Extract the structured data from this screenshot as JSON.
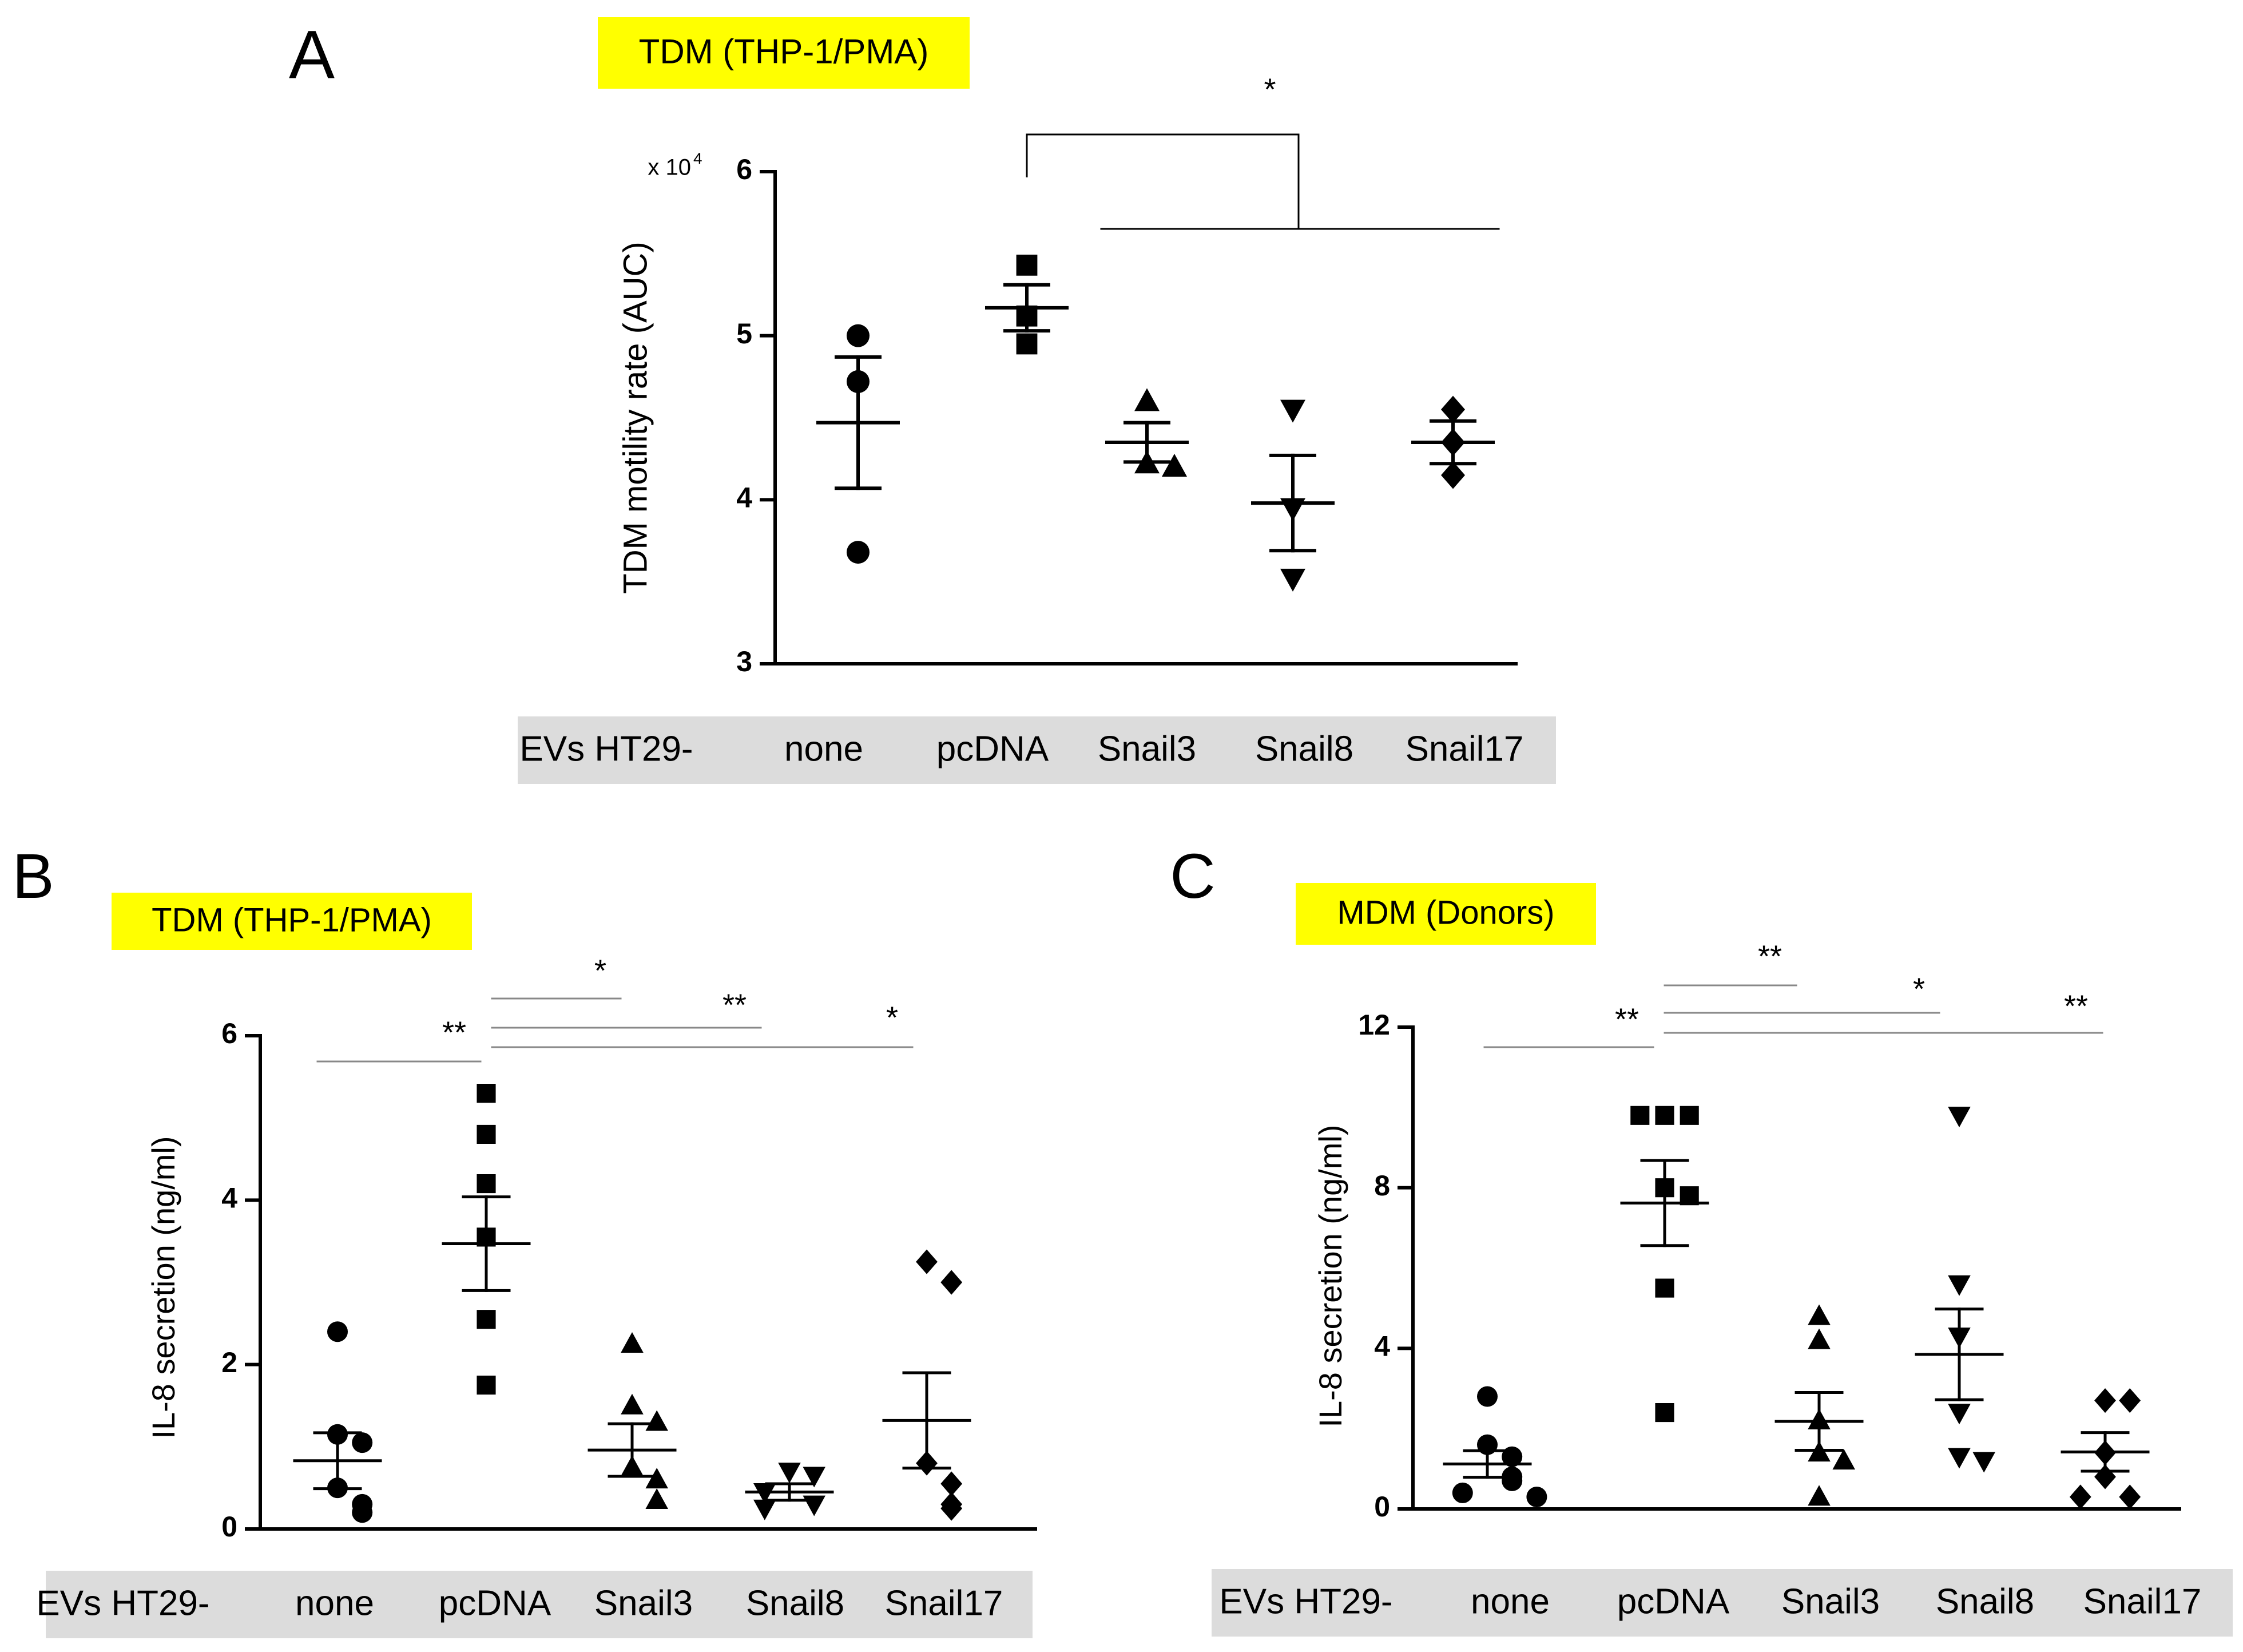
{
  "figure": {
    "label_note": "Three dot-plot panels (mean ± SEM) of EV treatments",
    "highlight_color": "#ffff00",
    "band_color": "#dcdcdc",
    "mark_color": "#000000",
    "bracket_color_bold": "#000000",
    "bracket_color_light": "#888888"
  },
  "chart_data": [
    {
      "panel": "A",
      "type": "scatter",
      "title": "TDM (THP-1/PMA)",
      "ylabel": "TDM motility rate (AUC)",
      "y_multiplier": "x 10",
      "y_multiplier_exp": "4",
      "ylim": [
        3,
        6
      ],
      "yticks": [
        "3",
        "4",
        "5",
        "6"
      ],
      "band_label": "EVs HT29-",
      "categories": [
        "none",
        "pcDNA",
        "Snail3",
        "Snail8",
        "Snail17"
      ],
      "markers": [
        "circle",
        "square",
        "triangle-up",
        "triangle-down",
        "diamond"
      ],
      "points": [
        [
          5.0,
          4.72,
          3.68
        ],
        [
          5.43,
          5.12,
          4.95
        ],
        [
          4.6,
          4.22,
          4.2
        ],
        [
          4.55,
          3.95,
          3.52
        ],
        [
          4.55,
          4.35,
          4.15
        ]
      ],
      "mean": [
        4.47,
        5.17,
        4.35,
        3.98,
        4.35
      ],
      "sem_upper": [
        4.87,
        5.31,
        4.47,
        4.27,
        4.48
      ],
      "sem_lower": [
        4.07,
        5.03,
        4.23,
        3.69,
        4.22
      ],
      "significance": [
        {
          "label": "*",
          "from": "pcDNA",
          "to": [
            "Snail3",
            "Snail8",
            "Snail17"
          ]
        }
      ]
    },
    {
      "panel": "B",
      "type": "scatter",
      "title": "TDM (THP-1/PMA)",
      "ylabel": "IL-8 secretion (ng/ml)",
      "ylim": [
        0,
        6
      ],
      "yticks": [
        "0",
        "2",
        "4",
        "6"
      ],
      "band_label": "EVs HT29-",
      "categories": [
        "none",
        "pcDNA",
        "Snail3",
        "Snail8",
        "Snail17"
      ],
      "markers": [
        "circle",
        "square",
        "triangle-up",
        "triangle-down",
        "diamond"
      ],
      "points": [
        [
          2.4,
          1.15,
          1.05,
          0.5,
          0.3,
          0.2
        ],
        [
          5.3,
          4.8,
          4.2,
          3.55,
          2.55,
          1.75
        ],
        [
          2.25,
          1.5,
          1.3,
          0.75,
          0.6,
          0.35
        ],
        [
          0.7,
          0.65,
          0.45,
          0.3,
          0.25
        ],
        [
          3.25,
          3.0,
          0.8,
          0.55,
          0.3,
          0.25
        ]
      ],
      "mean": [
        0.83,
        3.47,
        0.96,
        0.45,
        1.32
      ],
      "sem_upper": [
        1.17,
        4.04,
        1.28,
        0.55,
        1.9
      ],
      "sem_lower": [
        0.49,
        2.9,
        0.64,
        0.35,
        0.74
      ],
      "significance": [
        {
          "label": "**",
          "from": "none",
          "to": "pcDNA"
        },
        {
          "label": "*",
          "from": "pcDNA",
          "to": "Snail3"
        },
        {
          "label": "**",
          "from": "pcDNA",
          "to": "Snail8"
        },
        {
          "label": "*",
          "from": "pcDNA",
          "to": "Snail17"
        }
      ]
    },
    {
      "panel": "C",
      "type": "scatter",
      "title": "MDM (Donors)",
      "ylabel": "IL-8 secretion (ng/ml)",
      "ylim": [
        0,
        12
      ],
      "yticks": [
        "0",
        "4",
        "8",
        "12"
      ],
      "band_label": "EVs HT29-",
      "categories": [
        "none",
        "pcDNA",
        "Snail3",
        "Snail8",
        "Snail17"
      ],
      "markers": [
        "circle",
        "square",
        "triangle-up",
        "triangle-down",
        "diamond"
      ],
      "points": [
        [
          2.8,
          1.6,
          1.3,
          0.8,
          0.7,
          0.4,
          0.3
        ],
        [
          9.8,
          9.8,
          9.8,
          8.0,
          7.8,
          5.5,
          2.4
        ],
        [
          4.8,
          4.2,
          2.2,
          1.4,
          1.2,
          0.3
        ],
        [
          9.8,
          5.6,
          4.3,
          2.4,
          1.3,
          1.2
        ],
        [
          2.7,
          2.7,
          1.4,
          0.8,
          0.3,
          0.3
        ]
      ],
      "mean": [
        1.12,
        7.62,
        2.18,
        3.85,
        1.42
      ],
      "sem_upper": [
        1.45,
        8.68,
        2.9,
        4.98,
        1.9
      ],
      "sem_lower": [
        0.79,
        6.56,
        1.46,
        2.72,
        0.94
      ],
      "significance": [
        {
          "label": "**",
          "from": "none",
          "to": "pcDNA"
        },
        {
          "label": "**",
          "from": "pcDNA",
          "to": "Snail3"
        },
        {
          "label": "*",
          "from": "pcDNA",
          "to": "Snail8"
        },
        {
          "label": "**",
          "from": "pcDNA",
          "to": "Snail17"
        }
      ]
    }
  ]
}
